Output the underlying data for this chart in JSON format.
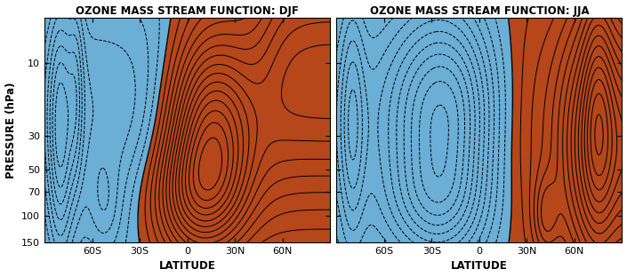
{
  "title_left": "OZONE MASS STREAM FUNCTION: DJF",
  "title_right": "OZONE MASS STREAM FUNCTION: JJA",
  "xlabel": "LATITUDE",
  "ylabel": "PRESSURE (hPa)",
  "lat_ticks": [
    -60,
    -30,
    0,
    30,
    60
  ],
  "lat_labels": [
    "60S",
    "30S",
    "0",
    "30N",
    "60N"
  ],
  "pressure_ticks": [
    10,
    30,
    50,
    70,
    100,
    150
  ],
  "color_positive": "#b5471b",
  "color_negative": "#6baed6",
  "background": "#ffffff",
  "title_fontsize": 8.5,
  "label_fontsize": 8.5,
  "tick_fontsize": 8
}
